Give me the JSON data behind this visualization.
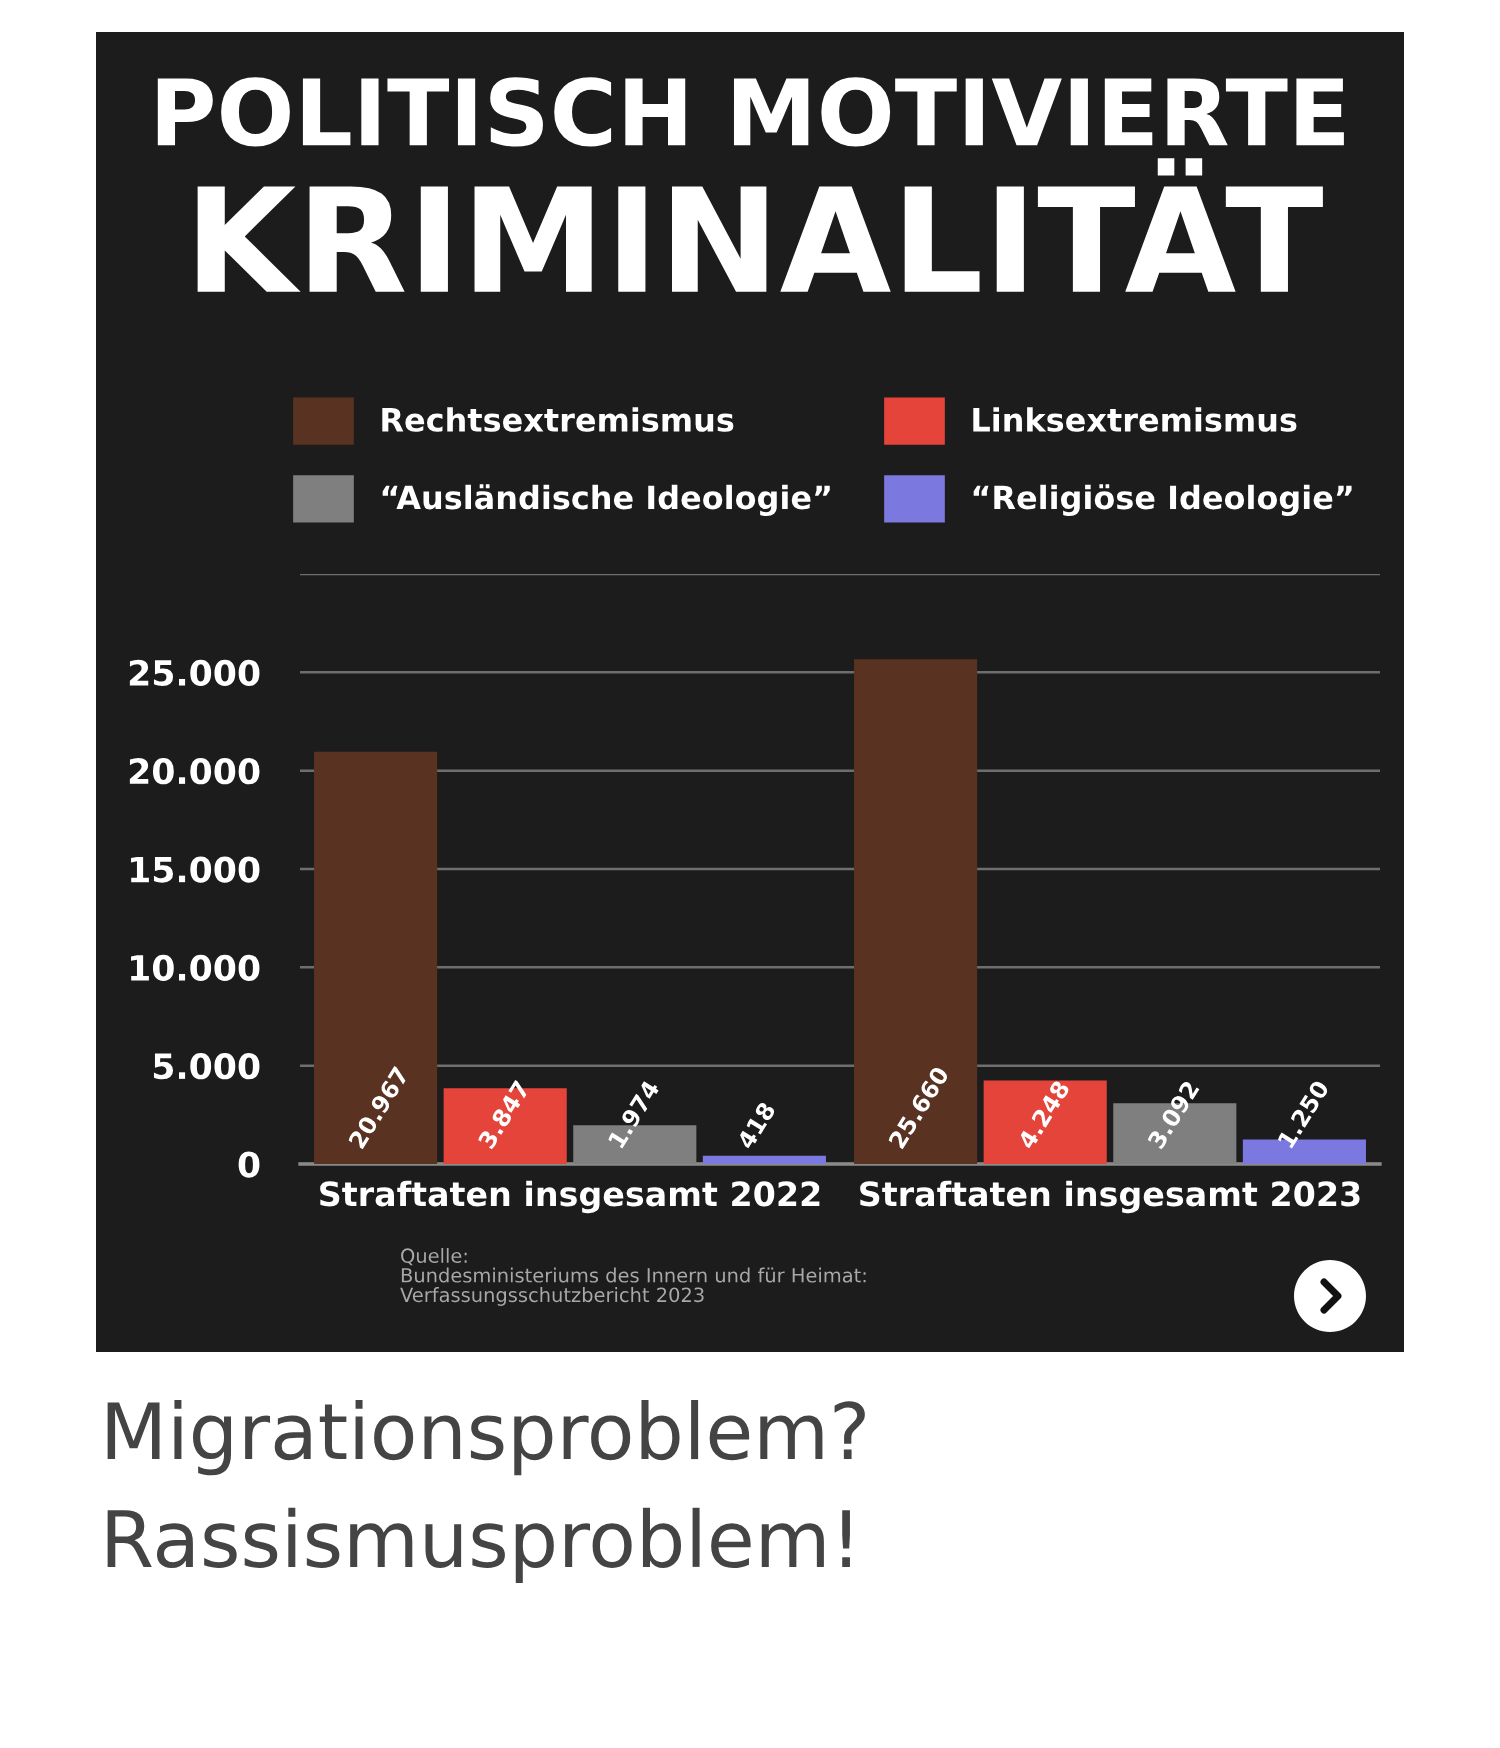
{
  "chart_data": {
    "type": "bar",
    "title": "POLITISCH MOTIVIERTE",
    "subtitle": "KRIMINALITÄT",
    "categories": [
      "Straftaten insgesamt 2022",
      "Straftaten insgesamt 2023"
    ],
    "series": [
      {
        "name": "Rechtsextremismus",
        "color": "#5a3221",
        "values": [
          20967,
          25660
        ],
        "value_labels": [
          "20.967",
          "25.660"
        ]
      },
      {
        "name": "Linksextremismus",
        "color": "#e5443b",
        "values": [
          3847,
          4248
        ],
        "value_labels": [
          "3.847",
          "4.248"
        ]
      },
      {
        "name": "“Ausländische Ideologie”",
        "color": "#7f7f7f",
        "values": [
          1974,
          3092
        ],
        "value_labels": [
          "1.974",
          "3.092"
        ]
      },
      {
        "name": "“Religiöse Ideologie”",
        "color": "#7b79e0",
        "values": [
          418,
          1250
        ],
        "value_labels": [
          "418",
          "1.250"
        ]
      }
    ],
    "ylim": [
      0,
      30000
    ],
    "yticks": [
      0,
      {
        "value": 5000,
        "label": "5.000"
      },
      {
        "value": 10000,
        "label": "10.000"
      },
      {
        "value": 15000,
        "label": "15.000"
      },
      {
        "value": 20000,
        "label": "20.000"
      },
      {
        "value": 25000,
        "label": "25.000"
      },
      {
        "value": 30000,
        "label": null
      }
    ],
    "grid": "y",
    "legend": "top",
    "annotations": [
      "Quelle:\nBundesministeriums des Innern und für Heimat:\nVerfassungsschutzbericht 2023",
      "Migrationsproblem?\nRassismusproblem!"
    ]
  }
}
